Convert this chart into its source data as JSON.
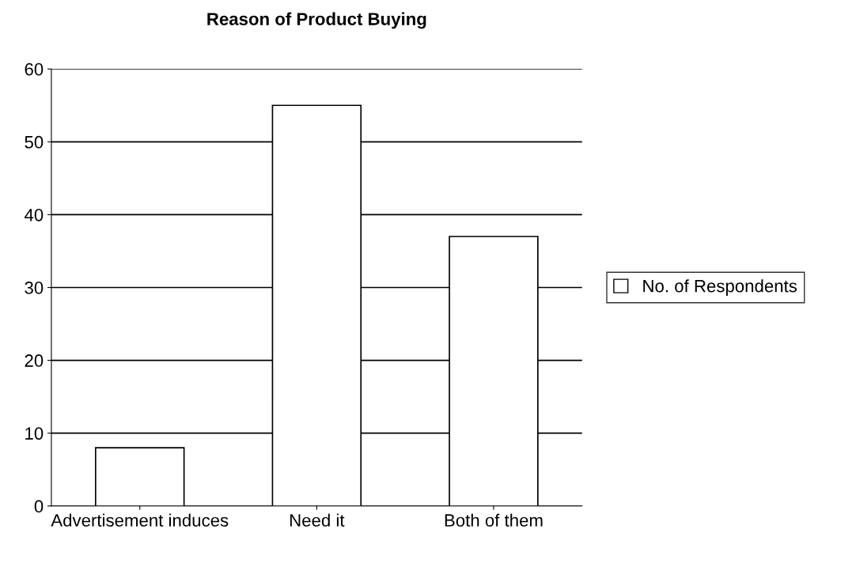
{
  "chart_data": {
    "type": "bar",
    "title": "Reason of Product Buying",
    "categories": [
      "Advertisement induces",
      "Need it",
      "Both of them"
    ],
    "series": [
      {
        "name": "No. of Respondents",
        "color": "#ffffff",
        "values": [
          8,
          55,
          37
        ]
      }
    ],
    "ylim": [
      0,
      60
    ],
    "yticks": [
      0,
      10,
      20,
      30,
      40,
      50,
      60
    ],
    "grid": "y",
    "legend": "right"
  }
}
